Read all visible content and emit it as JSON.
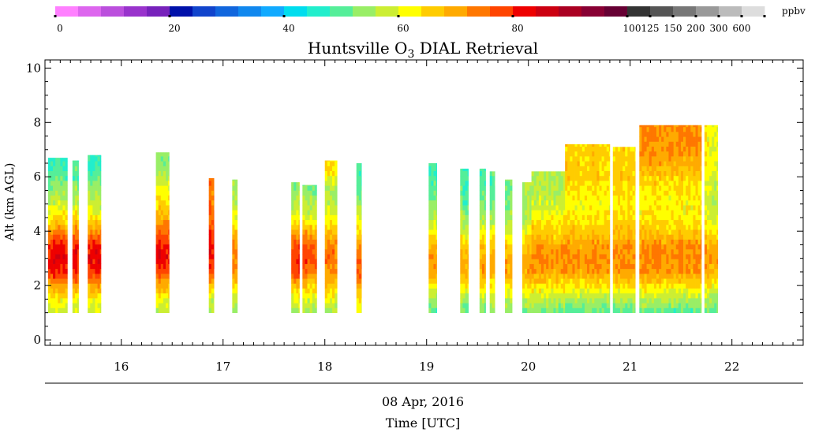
{
  "chart_data": {
    "type": "heatmap",
    "title_parts": [
      "Huntsville O",
      "3",
      " DIAL Retrieval"
    ],
    "title": "Huntsville O3 DIAL Retrieval",
    "ylabel": "Alt (km AGL)",
    "date_label": "08 Apr, 2016",
    "xlabel": "Time [UTC]",
    "x_range": [
      15.25,
      22.7
    ],
    "y_range": [
      -0.2,
      10.3
    ],
    "x_ticks": [
      16,
      17,
      18,
      19,
      20,
      21,
      22
    ],
    "y_ticks": [
      0,
      2,
      4,
      6,
      8,
      10
    ],
    "colorbar": {
      "unit": "ppbv",
      "tick_labels": [
        "0",
        "20",
        "40",
        "60",
        "80",
        "100",
        "125",
        "150",
        "200",
        "300",
        "600"
      ],
      "colors": [
        "#ff80ff",
        "#dd66ee",
        "#bb4fdd",
        "#9933cc",
        "#7722bb",
        "#0011aa",
        "#1144cc",
        "#1166dd",
        "#1188ee",
        "#11aaff",
        "#00ddee",
        "#22eecc",
        "#55ee99",
        "#99ee66",
        "#ccee33",
        "#ffff00",
        "#ffcc00",
        "#ffaa00",
        "#ff7700",
        "#ff4400",
        "#ee0000",
        "#cc0011",
        "#aa0022",
        "#880033",
        "#660033",
        "#333333",
        "#555555",
        "#777777",
        "#999999",
        "#bbbbbb",
        "#dddddd"
      ]
    },
    "profiles": [
      {
        "t0": 15.28,
        "t1": 15.47,
        "top": 6.7,
        "o3": [
          50,
          54,
          57,
          62,
          70,
          80,
          83,
          80,
          72,
          64,
          58,
          54,
          50,
          47
        ]
      },
      {
        "t0": 15.52,
        "t1": 15.58,
        "top": 6.6,
        "o3": [
          48,
          53,
          57,
          62,
          72,
          80,
          82,
          80,
          72,
          64,
          57,
          54,
          50
        ]
      },
      {
        "t0": 15.67,
        "t1": 15.8,
        "top": 6.8,
        "o3": [
          50,
          54,
          58,
          63,
          70,
          80,
          83,
          80,
          72,
          63,
          57,
          54,
          50,
          47
        ]
      },
      {
        "t0": 16.34,
        "t1": 16.47,
        "top": 6.9,
        "o3": [
          48,
          54,
          57,
          62,
          70,
          78,
          83,
          82,
          76,
          70,
          65,
          62,
          58,
          54
        ]
      },
      {
        "t0": 16.86,
        "t1": 16.91,
        "top": 5.95,
        "o3": [
          48,
          52,
          55,
          60,
          68,
          78,
          82,
          82,
          80,
          76,
          74
        ]
      },
      {
        "t0": 17.09,
        "t1": 17.14,
        "top": 5.9,
        "o3": [
          47,
          50,
          53,
          58,
          65,
          72,
          74,
          72,
          66,
          60,
          55
        ]
      },
      {
        "t0": 17.67,
        "t1": 17.75,
        "top": 5.8,
        "o3": [
          43,
          50,
          55,
          60,
          67,
          78,
          80,
          78,
          70,
          62,
          56,
          54
        ]
      },
      {
        "t0": 17.78,
        "t1": 17.92,
        "top": 5.7,
        "o3": [
          45,
          50,
          54,
          59,
          66,
          74,
          78,
          76,
          68,
          60,
          55,
          52
        ]
      },
      {
        "t0": 18.0,
        "t1": 18.12,
        "top": 6.6,
        "o3": [
          48,
          52,
          55,
          60,
          66,
          72,
          74,
          72,
          66,
          60,
          56,
          54,
          60,
          64
        ]
      },
      {
        "t0": 18.31,
        "t1": 18.36,
        "top": 6.5,
        "o3": [
          50,
          54,
          57,
          62,
          70,
          76,
          74,
          70,
          64,
          58,
          54,
          50,
          48
        ]
      },
      {
        "t0": 19.02,
        "t1": 19.1,
        "top": 6.5,
        "o3": [
          44,
          47,
          50,
          54,
          62,
          70,
          72,
          68,
          62,
          56,
          52,
          50,
          48
        ]
      },
      {
        "t0": 19.33,
        "t1": 19.41,
        "top": 6.3,
        "o3": [
          44,
          48,
          52,
          56,
          64,
          70,
          70,
          66,
          60,
          55,
          51,
          50
        ]
      },
      {
        "t0": 19.52,
        "t1": 19.58,
        "top": 6.3,
        "o3": [
          44,
          48,
          52,
          56,
          64,
          70,
          70,
          67,
          61,
          56,
          52,
          50
        ]
      },
      {
        "t0": 19.62,
        "t1": 19.67,
        "top": 6.2,
        "o3": [
          44,
          48,
          52,
          57,
          64,
          70,
          70,
          67,
          61,
          56,
          52,
          50
        ]
      },
      {
        "t0": 19.77,
        "t1": 19.84,
        "top": 5.9,
        "o3": [
          44,
          48,
          52,
          57,
          65,
          70,
          70,
          66,
          60,
          55,
          52
        ]
      },
      {
        "t0": 19.94,
        "t1": 20.03,
        "top": 5.8,
        "o3": [
          44,
          48,
          52,
          57,
          65,
          70,
          70,
          66,
          60,
          56,
          55
        ]
      },
      {
        "t0": 20.03,
        "t1": 20.36,
        "top": 6.2,
        "o3": [
          44,
          47,
          51,
          57,
          64,
          70,
          72,
          70,
          66,
          62,
          58,
          56
        ]
      },
      {
        "t0": 20.36,
        "t1": 20.8,
        "top": 7.2,
        "o3": [
          44,
          46,
          50,
          56,
          64,
          71,
          73,
          71,
          67,
          64,
          62,
          64,
          66,
          66
        ]
      },
      {
        "t0": 20.83,
        "t1": 21.05,
        "top": 7.1,
        "o3": [
          44,
          46,
          50,
          56,
          64,
          71,
          73,
          71,
          67,
          64,
          63,
          64,
          66,
          65
        ]
      },
      {
        "t0": 21.09,
        "t1": 21.7,
        "top": 7.9,
        "o3": [
          44,
          46,
          50,
          56,
          64,
          71,
          73,
          71,
          66,
          63,
          62,
          63,
          66,
          70,
          72
        ]
      },
      {
        "t0": 21.73,
        "t1": 21.86,
        "top": 7.9,
        "o3": [
          44,
          46,
          50,
          56,
          63,
          69,
          71,
          69,
          64,
          60,
          58,
          58,
          60,
          62,
          62
        ]
      }
    ]
  }
}
